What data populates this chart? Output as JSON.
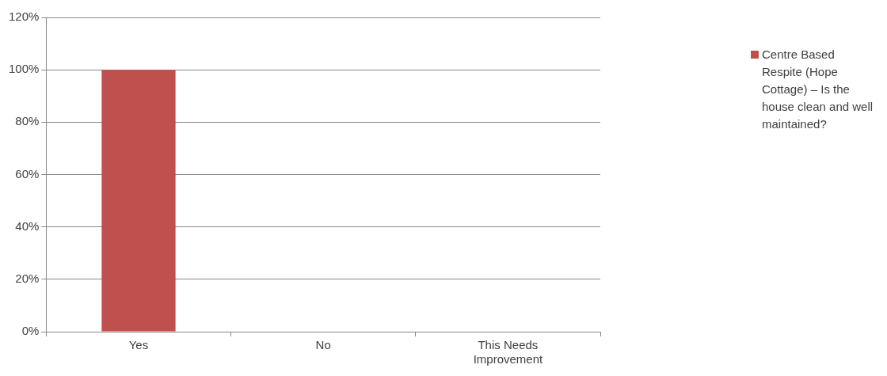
{
  "chart_data": {
    "type": "bar",
    "categories": [
      "Yes",
      "No",
      "This Needs Improvement"
    ],
    "series": [
      {
        "name": "Centre Based Respite (Hope Cottage) – Is the house clean and well maintained?",
        "color": "#c0504d",
        "values": [
          100,
          0,
          0
        ]
      }
    ],
    "ylim": [
      0,
      120
    ],
    "yticks": [
      {
        "value": 0,
        "label": "0%"
      },
      {
        "value": 20,
        "label": "20%"
      },
      {
        "value": 40,
        "label": "40%"
      },
      {
        "value": 60,
        "label": "60%"
      },
      {
        "value": 80,
        "label": "80%"
      },
      {
        "value": 100,
        "label": "100%"
      },
      {
        "value": 120,
        "label": "120%"
      }
    ],
    "grid": "y",
    "legend": "right"
  }
}
